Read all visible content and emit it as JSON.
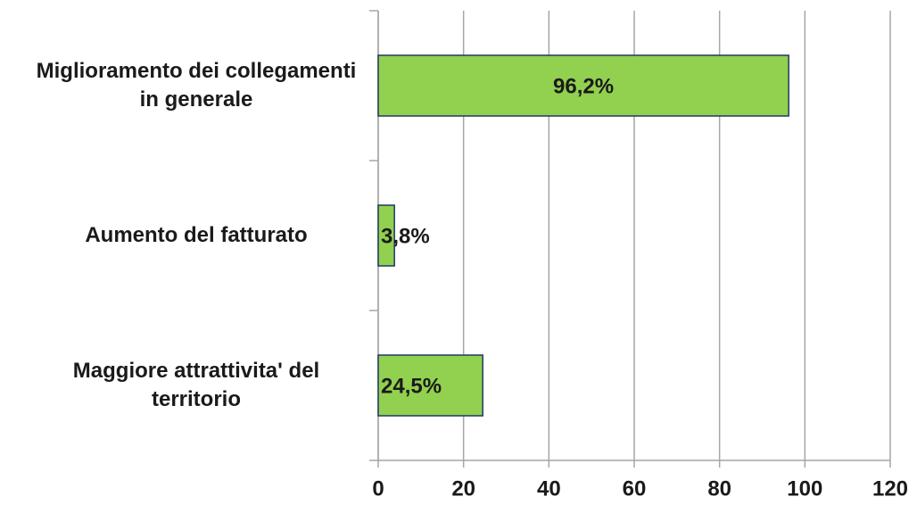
{
  "chart_data": {
    "type": "bar",
    "orientation": "horizontal",
    "categories": [
      "Miglioramento dei collegamenti  in generale",
      "Aumento del fatturato",
      "Maggiore attrattivita' del territorio"
    ],
    "values": [
      96.2,
      3.8,
      24.5
    ],
    "value_labels": [
      "96,2%",
      "3,8%",
      "24,5%"
    ],
    "color": "#92d050",
    "xlim": [
      0,
      120
    ],
    "xticks": [
      0,
      20,
      40,
      60,
      80,
      100,
      120
    ],
    "grid": true
  }
}
